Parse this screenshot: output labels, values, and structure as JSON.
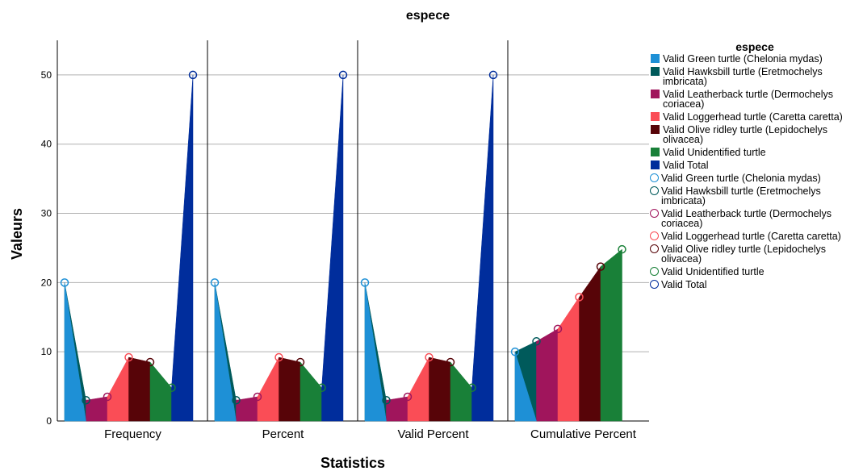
{
  "chart_data": {
    "type": "area",
    "title": "espece",
    "xlabel": "Statistics",
    "ylabel": "Valeurs",
    "ylim": [
      0,
      55
    ],
    "yticks": [
      0,
      10,
      20,
      30,
      40,
      50
    ],
    "grid": true,
    "legend_placement": "right",
    "panels": [
      "Frequency",
      "Percent",
      "Valid Percent",
      "Cumulative Percent"
    ],
    "categories": [
      "Green turtle (Chelonia mydas)",
      "Hawksbill turtle (Eretmochelys imbricata)",
      "Leatherback turtle (Dermochelys coriacea)",
      "Loggerhead turtle (Caretta caretta)",
      "Olive ridley turtle (Lepidochelys olivacea)",
      "Unidentified turtle",
      "Total"
    ],
    "values": {
      "Frequency": [
        20,
        3,
        3.5,
        9.2,
        8.5,
        4.8,
        50
      ],
      "Percent": [
        20,
        3,
        3.5,
        9.2,
        8.5,
        4.8,
        50
      ],
      "Valid Percent": [
        20,
        3,
        3.5,
        9.2,
        8.5,
        4.8,
        50
      ],
      "Cumulative Percent": [
        10,
        11.5,
        13.3,
        17.9,
        22.3,
        24.8,
        null
      ]
    }
  },
  "legend": {
    "title": "espece",
    "items": [
      {
        "label": "Valid Green turtle (Chelonia mydas)",
        "marker": "square",
        "color": "#1e90d6"
      },
      {
        "label": "Valid Hawksbill turtle (Eretmochelys imbricata)",
        "marker": "square",
        "color": "#005a5b"
      },
      {
        "label": "Valid Leatherback turtle (Dermochelys coriacea)",
        "marker": "square",
        "color": "#a0155c"
      },
      {
        "label": "Valid Loggerhead turtle (Caretta caretta)",
        "marker": "square",
        "color": "#fa4d56"
      },
      {
        "label": "Valid Olive ridley turtle (Lepidochelys olivacea)",
        "marker": "square",
        "color": "#570408"
      },
      {
        "label": "Valid Unidentified turtle",
        "marker": "square",
        "color": "#198038"
      },
      {
        "label": "Valid Total",
        "marker": "square",
        "color": "#002d9c"
      },
      {
        "label": "Valid Green turtle (Chelonia mydas)",
        "marker": "circle",
        "color": "#1e90d6"
      },
      {
        "label": "Valid Hawksbill turtle (Eretmochelys imbricata)",
        "marker": "circle",
        "color": "#005a5b"
      },
      {
        "label": "Valid Leatherback turtle (Dermochelys coriacea)",
        "marker": "circle",
        "color": "#a0155c"
      },
      {
        "label": "Valid Loggerhead turtle (Caretta caretta)",
        "marker": "circle",
        "color": "#fa4d56"
      },
      {
        "label": "Valid Olive ridley turtle (Lepidochelys olivacea)",
        "marker": "circle",
        "color": "#570408"
      },
      {
        "label": "Valid Unidentified turtle",
        "marker": "circle",
        "color": "#198038"
      },
      {
        "label": "Valid Total",
        "marker": "circle",
        "color": "#002d9c"
      }
    ]
  }
}
